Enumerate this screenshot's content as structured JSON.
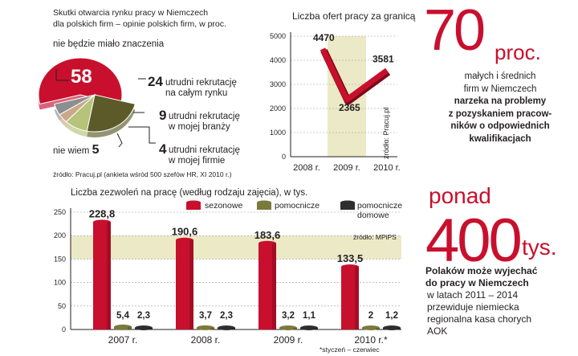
{
  "pie": {
    "title_line1": "Skutki otwarcia rynku pracy w Niemczech",
    "title_line2": "dla polskich firm – opinie polskich firm, w proc.",
    "source": "źródło: Pracuj.pl (ankieta wśród 500 szefów HR, XI 2010 r.)",
    "colors": {
      "main": "#c8102e",
      "olive_dark": "#5b5a28",
      "olive_light": "#b7c27a",
      "tan": "#c9a98a",
      "grey": "#8b8f8f"
    }
  },
  "line": {
    "title": "Liczba ofert pracy za granicą",
    "source_vertical": "źródło: Pracuj.pl",
    "colors": {
      "line": "#c8102e",
      "band": "#ece9c6"
    }
  },
  "bars": {
    "title": "Liczba zezwoleń na pracę (według rodzaju zajęcia), w tys.",
    "source": "źródło: MPiPS",
    "footnote": "*styczeń – czerwiec",
    "legend_sezonowe": "sezonowe",
    "legend_pomocnicze": "pomocnicze",
    "legend_pomocnicze_domowe": "pomocnicze",
    "legend_domowe": "domowe",
    "colors": {
      "sezonowe": "#c8102e",
      "pomocnicze": "#7a7a3a",
      "domowe": "#2e2e2e",
      "band": "#ece9c6"
    }
  },
  "chart_data": [
    {
      "type": "pie",
      "title": "Skutki otwarcia rynku pracy w Niemczech dla polskich firm – opinie polskich firm, w proc.",
      "slices": [
        {
          "label": "nie będzie miało znaczenia",
          "value": 58
        },
        {
          "label": "utrudni rekrutację na całym rynku",
          "value": 24
        },
        {
          "label": "utrudni rekrutację w mojej branży",
          "value": 9
        },
        {
          "label": "utrudni rekrutację w mojej firmie",
          "value": 4
        },
        {
          "label": "nie wiem",
          "value": 5
        }
      ]
    },
    {
      "type": "line",
      "title": "Liczba ofert pracy za granicą",
      "categories": [
        "2008 r.",
        "2009 r.",
        "2010 r."
      ],
      "values": [
        4470,
        2365,
        3581
      ],
      "value_labels": [
        "4470",
        "2365",
        "3581"
      ],
      "ylim": [
        0,
        5000
      ],
      "yticks": [
        0,
        1000,
        2000,
        3000,
        4000,
        5000
      ]
    },
    {
      "type": "bar",
      "title": "Liczba zezwoleń na pracę (według rodzaju zajęcia), w tys.",
      "categories": [
        "2007 r.",
        "2008 r.",
        "2009 r.",
        "2010 r.*"
      ],
      "ylim": [
        0,
        250
      ],
      "yticks": [
        0,
        50,
        100,
        150,
        200,
        250
      ],
      "series": [
        {
          "name": "sezonowe",
          "values": [
            228.8,
            190.6,
            183.6,
            133.5
          ],
          "labels": [
            "228,8",
            "190,6",
            "183,6",
            "133,5"
          ]
        },
        {
          "name": "pomocnicze",
          "values": [
            5.4,
            3.7,
            3.2,
            2
          ],
          "labels": [
            "5,4",
            "3,7",
            "3,2",
            "2"
          ]
        },
        {
          "name": "pomocnicze domowe",
          "values": [
            2.3,
            2.3,
            1.1,
            1.2
          ],
          "labels": [
            "2,3",
            "2,3",
            "1,1",
            "1,2"
          ]
        }
      ]
    }
  ],
  "facts": {
    "f1_number": "70",
    "f1_unit": "proc.",
    "f1_line1": "małych i średnich",
    "f1_line2": "firm w Niemczech",
    "f1_line3": "narzeka na problemy",
    "f1_line4": "z pozyskaniem pracow-",
    "f1_line5": "ników o odpowiednich",
    "f1_line6": "kwalifikacjach",
    "f2_prefix": "ponad",
    "f2_number": "400",
    "f2_unit": "tys.",
    "f2_line1": "Polaków może wyjechać",
    "f2_line2": "do pracy w Niemczech",
    "f2_line3": "w latach 2011 – 2014",
    "f2_line4": "przewiduje niemiecka",
    "f2_line5": "regionalna kasa chorych",
    "f2_line6": "AOK"
  }
}
